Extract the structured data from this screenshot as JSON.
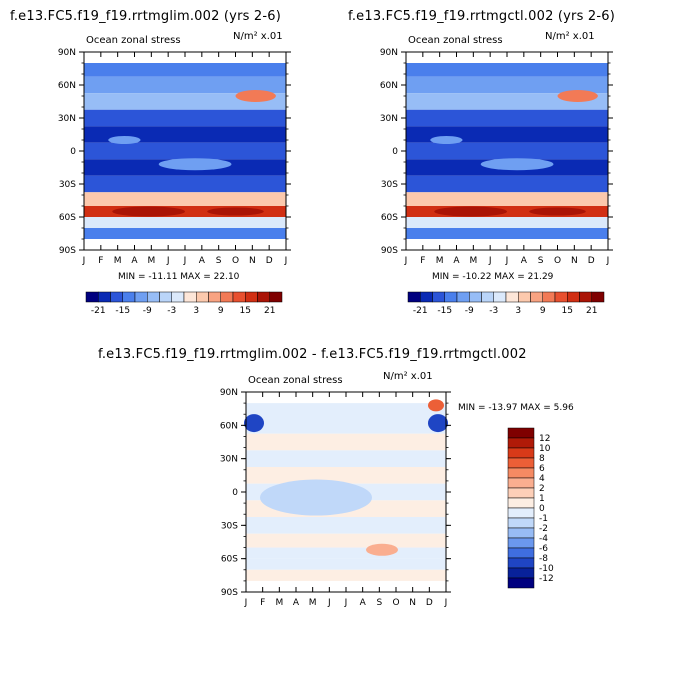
{
  "chart_data": [
    {
      "type": "heatmap",
      "title": "f.e13.FC5.f19_f19.rrtmglim.002 (yrs 2-6)",
      "subtitle": "Ocean zonal stress",
      "units": "N/m² x.01",
      "stats": "MIN = -11.11 MAX =  22.10",
      "x_ticks": [
        "J",
        "F",
        "M",
        "A",
        "M",
        "J",
        "J",
        "A",
        "S",
        "O",
        "N",
        "D",
        "J"
      ],
      "y_ticks": [
        "90N",
        "60N",
        "30N",
        "0",
        "30S",
        "60S",
        "90S"
      ],
      "colorbar_labels": [
        "-21",
        "-15",
        "-9",
        "-3",
        "3",
        "9",
        "15",
        "21"
      ],
      "colorbar_colors": [
        "#00007f",
        "#0a2ab4",
        "#2c55d8",
        "#4a7fec",
        "#6f9ff2",
        "#97bdf6",
        "#bad5f9",
        "#dbe9fb",
        "#fde6d8",
        "#fcc9ad",
        "#f8a382",
        "#f27a56",
        "#e8502f",
        "#d12f13",
        "#aa1406",
        "#7f0000"
      ],
      "bands": [
        {
          "lat": 75,
          "level": 3
        },
        {
          "lat": 60,
          "level": 4
        },
        {
          "lat": 45,
          "level": 5
        },
        {
          "lat": 30,
          "level": 2
        },
        {
          "lat": 15,
          "level": 1
        },
        {
          "lat": 0,
          "level": 2
        },
        {
          "lat": -15,
          "level": 1
        },
        {
          "lat": -30,
          "level": 2
        },
        {
          "lat": -45,
          "level": 9
        },
        {
          "lat": -55,
          "level": 13
        },
        {
          "lat": -65,
          "level": 7
        },
        {
          "lat": -75,
          "level": 3
        }
      ]
    },
    {
      "type": "heatmap",
      "title": "f.e13.FC5.f19_f19.rrtmgctl.002 (yrs 2-6)",
      "subtitle": "Ocean zonal stress",
      "units": "N/m² x.01",
      "stats": "MIN = -10.22 MAX =  21.29",
      "x_ticks": [
        "J",
        "F",
        "M",
        "A",
        "M",
        "J",
        "J",
        "A",
        "S",
        "O",
        "N",
        "D",
        "J"
      ],
      "y_ticks": [
        "90N",
        "60N",
        "30N",
        "0",
        "30S",
        "60S",
        "90S"
      ],
      "colorbar_labels": [
        "-21",
        "-15",
        "-9",
        "-3",
        "3",
        "9",
        "15",
        "21"
      ],
      "colorbar_colors": [
        "#00007f",
        "#0a2ab4",
        "#2c55d8",
        "#4a7fec",
        "#6f9ff2",
        "#97bdf6",
        "#bad5f9",
        "#dbe9fb",
        "#fde6d8",
        "#fcc9ad",
        "#f8a382",
        "#f27a56",
        "#e8502f",
        "#d12f13",
        "#aa1406",
        "#7f0000"
      ],
      "bands": [
        {
          "lat": 75,
          "level": 3
        },
        {
          "lat": 60,
          "level": 4
        },
        {
          "lat": 45,
          "level": 5
        },
        {
          "lat": 30,
          "level": 2
        },
        {
          "lat": 15,
          "level": 1
        },
        {
          "lat": 0,
          "level": 2
        },
        {
          "lat": -15,
          "level": 1
        },
        {
          "lat": -30,
          "level": 2
        },
        {
          "lat": -45,
          "level": 9
        },
        {
          "lat": -55,
          "level": 13
        },
        {
          "lat": -65,
          "level": 7
        },
        {
          "lat": -75,
          "level": 3
        }
      ]
    },
    {
      "type": "heatmap",
      "title": "f.e13.FC5.f19_f19.rrtmglim.002 - f.e13.FC5.f19_f19.rrtmgctl.002",
      "subtitle": "Ocean zonal stress",
      "units": "N/m² x.01",
      "stats": "MIN = -13.97 MAX =   5.96",
      "x_ticks": [
        "J",
        "F",
        "M",
        "A",
        "M",
        "J",
        "J",
        "A",
        "S",
        "O",
        "N",
        "D",
        "J"
      ],
      "y_ticks": [
        "90N",
        "60N",
        "30N",
        "0",
        "30S",
        "60S",
        "90S"
      ],
      "colorbar_labels": [
        "12",
        "10",
        "8",
        "6",
        "4",
        "2",
        "1",
        "0",
        "-1",
        "-2",
        "-4",
        "-6",
        "-8",
        "-10",
        "-12"
      ],
      "colorbar_colors": [
        "#7f0000",
        "#b01a08",
        "#d83a19",
        "#ec5f37",
        "#f58a63",
        "#faae90",
        "#fdcfb8",
        "#fdeee3",
        "#e3eefc",
        "#c0d8f9",
        "#98bcf5",
        "#6b98ee",
        "#3f6ee0",
        "#1f45c4",
        "#08219a",
        "#00007f"
      ],
      "bands": [
        {
          "lat": 75,
          "level": 8
        },
        {
          "lat": 60,
          "level": 8
        },
        {
          "lat": 45,
          "level": 7
        },
        {
          "lat": 30,
          "level": 8
        },
        {
          "lat": 15,
          "level": 7
        },
        {
          "lat": 0,
          "level": 8
        },
        {
          "lat": -15,
          "level": 7
        },
        {
          "lat": -30,
          "level": 8
        },
        {
          "lat": -45,
          "level": 7
        },
        {
          "lat": -55,
          "level": 8
        },
        {
          "lat": -65,
          "level": 8
        },
        {
          "lat": -75,
          "level": 7
        }
      ]
    }
  ]
}
